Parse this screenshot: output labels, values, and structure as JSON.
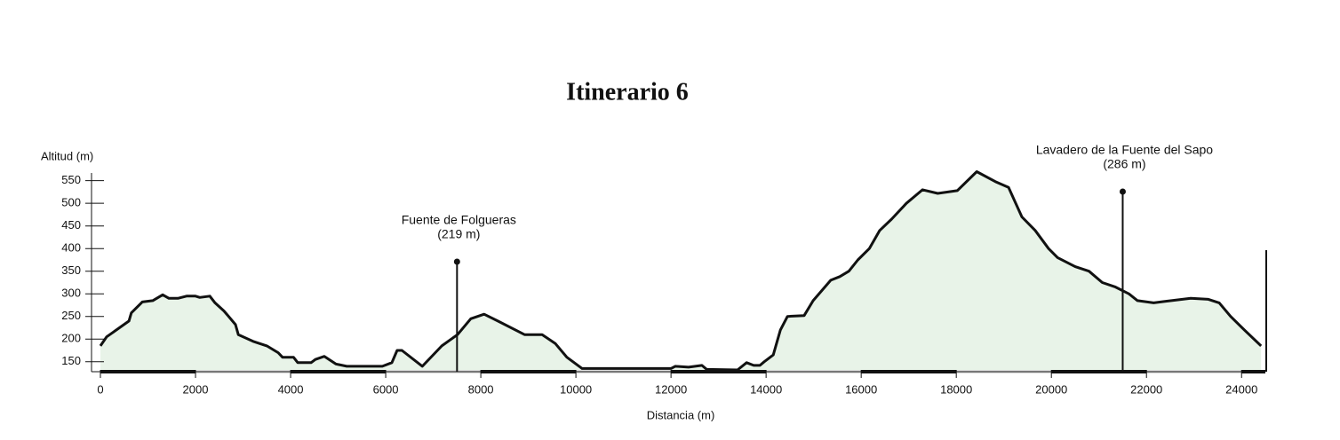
{
  "chart_data": {
    "type": "area",
    "title": "Itinerario 6",
    "ylabel": "Altitud (m)",
    "xlabel": "Distancia (m)",
    "color": "#e8f3e8",
    "line_color": "#111111",
    "xlim": [
      0,
      24500
    ],
    "ylim": [
      128,
      567
    ],
    "xticks": [
      0,
      2000,
      4000,
      6000,
      8000,
      10000,
      12000,
      14000,
      16000,
      18000,
      20000,
      22000,
      24000
    ],
    "yticks": [
      150,
      200,
      250,
      300,
      350,
      400,
      450,
      500,
      550
    ],
    "x": [
      0,
      130,
      600,
      650,
      880,
      1100,
      1310,
      1440,
      1630,
      1810,
      2000,
      2090,
      2300,
      2410,
      2600,
      2840,
      2900,
      3210,
      3500,
      3740,
      3830,
      4060,
      4150,
      4430,
      4520,
      4710,
      4950,
      5180,
      5930,
      6130,
      6240,
      6340,
      6770,
      7180,
      7510,
      7790,
      8070,
      8360,
      8920,
      9290,
      9570,
      9810,
      10130,
      12000,
      12090,
      12370,
      12650,
      12750,
      13400,
      13590,
      13740,
      13870,
      13960,
      14150,
      14300,
      14450,
      14800,
      14990,
      15360,
      15550,
      15740,
      15930,
      16170,
      16390,
      16640,
      16950,
      17290,
      17610,
      18020,
      18430,
      18820,
      19100,
      19380,
      19660,
      19940,
      20130,
      20500,
      20790,
      21070,
      21350,
      21630,
      21810,
      22150,
      22370,
      22930,
      23300,
      23530,
      23770,
      24060,
      24410
    ],
    "values": [
      185,
      205,
      240,
      258,
      282,
      285,
      298,
      290,
      290,
      295,
      295,
      292,
      295,
      280,
      262,
      232,
      210,
      195,
      185,
      170,
      160,
      160,
      148,
      148,
      155,
      162,
      145,
      140,
      140,
      148,
      175,
      175,
      140,
      185,
      210,
      245,
      255,
      240,
      210,
      210,
      190,
      160,
      135,
      135,
      140,
      138,
      142,
      133,
      132,
      148,
      142,
      142,
      150,
      165,
      220,
      250,
      252,
      285,
      330,
      338,
      350,
      375,
      400,
      440,
      465,
      500,
      530,
      522,
      528,
      570,
      548,
      535,
      470,
      440,
      400,
      380,
      360,
      350,
      325,
      315,
      300,
      285,
      280,
      283,
      290,
      288,
      280,
      250,
      220,
      185
    ],
    "annotations": [
      {
        "text": "Fuente de Folgueras",
        "value_text": "(219 m)",
        "x": 7500
      },
      {
        "text": "Lavadero de la Fuente del Sapo",
        "value_text": "(286 m)",
        "x": 21500
      }
    ]
  }
}
